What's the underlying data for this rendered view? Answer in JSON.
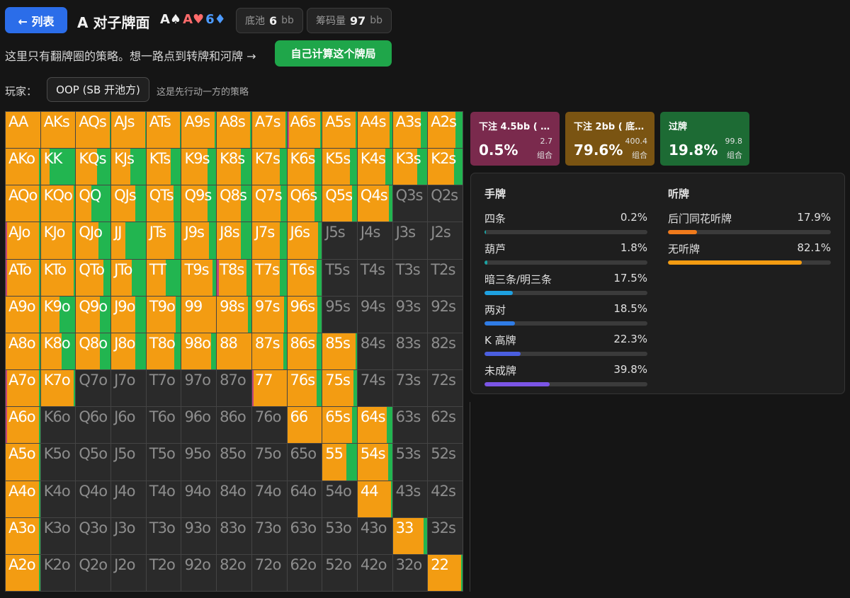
{
  "header": {
    "back_label": "← 列表",
    "title": "A 对子牌面",
    "board": [
      {
        "rank": "A",
        "suit": "♠",
        "suit_class": "suit-s"
      },
      {
        "rank": "A",
        "suit": "♥",
        "suit_class": "suit-h"
      },
      {
        "rank": "6",
        "suit": "♦",
        "suit_class": "suit-d"
      }
    ],
    "pot": {
      "label": "底池",
      "value": "6",
      "unit": "bb"
    },
    "stack": {
      "label": "筹码量",
      "value": "97",
      "unit": "bb"
    }
  },
  "info": {
    "text": "这里只有翻牌圈的策略。想一路点到转牌和河牌 →",
    "calc_button": "自己计算这个牌局"
  },
  "player": {
    "label": "玩家：",
    "selected": "OOP (SB 开池方)",
    "hint": "这是先行动一方的策略"
  },
  "actions": [
    {
      "name": "下注 4.5bb ( …",
      "pct": "0.5%",
      "combos": "2.7",
      "combos_label": "组合",
      "color": "#7a2a4d"
    },
    {
      "name": "下注 2bb ( 底…",
      "pct": "79.6%",
      "combos": "400.4",
      "combos_label": "组合",
      "color": "#7a5412"
    },
    {
      "name": "过牌",
      "pct": "19.8%",
      "combos": "99.8",
      "combos_label": "组合",
      "color": "#1d6b34"
    }
  ],
  "hands_panel": {
    "title": "手牌",
    "items": [
      {
        "label": "四条",
        "value": "0.2%",
        "pct": 0.2,
        "color": "#1aa3a3"
      },
      {
        "label": "葫芦",
        "value": "1.8%",
        "pct": 1.8,
        "color": "#1aa3a3"
      },
      {
        "label": "暗三条/明三条",
        "value": "17.5%",
        "pct": 17.5,
        "color": "#1ea0e0"
      },
      {
        "label": "两对",
        "value": "18.5%",
        "pct": 18.5,
        "color": "#2f7ce6"
      },
      {
        "label": "K 高牌",
        "value": "22.3%",
        "pct": 22.3,
        "color": "#4b5fe0"
      },
      {
        "label": "未成牌",
        "value": "39.8%",
        "pct": 39.8,
        "color": "#7b55e6"
      }
    ]
  },
  "draws_panel": {
    "title": "听牌",
    "items": [
      {
        "label": "后门同花听牌",
        "value": "17.9%",
        "pct": 17.9,
        "color": "#f07a1c"
      },
      {
        "label": "无听牌",
        "value": "82.1%",
        "pct": 82.1,
        "color": "#f39c12"
      }
    ]
  },
  "colors": {
    "bet": "#f39c12",
    "bet_large": "#c2457a",
    "check": "#22b550",
    "empty": "#2a2a2a"
  },
  "grid": {
    "rows": [
      [
        [
          "AA",
          [
            0,
            100,
            0
          ]
        ],
        [
          "AKs",
          [
            0,
            100,
            0
          ]
        ],
        [
          "AQs",
          [
            0,
            97,
            3
          ]
        ],
        [
          "AJs",
          [
            0,
            98,
            2
          ]
        ],
        [
          "ATs",
          [
            0,
            97,
            3
          ]
        ],
        [
          "A9s",
          [
            0,
            96,
            4
          ]
        ],
        [
          "A8s",
          [
            0,
            96,
            4
          ]
        ],
        [
          "A7s",
          [
            0,
            96,
            4
          ]
        ],
        [
          "A6s",
          [
            5,
            90,
            5
          ]
        ],
        [
          "A5s",
          [
            0,
            96,
            4
          ]
        ],
        [
          "A4s",
          [
            0,
            92,
            8
          ]
        ],
        [
          "A3s",
          [
            0,
            80,
            20
          ]
        ],
        [
          "A2s",
          [
            0,
            80,
            20
          ]
        ]
      ],
      [
        [
          "AKo",
          [
            0,
            96,
            4
          ]
        ],
        [
          "KK",
          [
            0,
            25,
            75
          ]
        ],
        [
          "KQs",
          [
            0,
            60,
            40
          ]
        ],
        [
          "KJs",
          [
            0,
            55,
            45
          ]
        ],
        [
          "KTs",
          [
            0,
            70,
            30
          ]
        ],
        [
          "K9s",
          [
            0,
            75,
            25
          ]
        ],
        [
          "K8s",
          [
            0,
            70,
            30
          ]
        ],
        [
          "K7s",
          [
            0,
            80,
            20
          ]
        ],
        [
          "K6s",
          [
            0,
            80,
            20
          ]
        ],
        [
          "K5s",
          [
            0,
            80,
            20
          ]
        ],
        [
          "K4s",
          [
            0,
            80,
            20
          ]
        ],
        [
          "K3s",
          [
            0,
            70,
            30
          ]
        ],
        [
          "K2s",
          [
            0,
            75,
            25
          ]
        ]
      ],
      [
        [
          "AQo",
          [
            0,
            96,
            4
          ]
        ],
        [
          "KQo",
          [
            0,
            96,
            4
          ]
        ],
        [
          "QQ",
          [
            0,
            45,
            55
          ]
        ],
        [
          "QJs",
          [
            0,
            70,
            30
          ]
        ],
        [
          "QTs",
          [
            0,
            78,
            22
          ]
        ],
        [
          "Q9s",
          [
            0,
            75,
            25
          ]
        ],
        [
          "Q8s",
          [
            0,
            70,
            30
          ]
        ],
        [
          "Q7s",
          [
            0,
            82,
            18
          ]
        ],
        [
          "Q6s",
          [
            0,
            80,
            20
          ]
        ],
        [
          "Q5s",
          [
            0,
            85,
            15
          ]
        ],
        [
          "Q4s",
          [
            0,
            90,
            10
          ]
        ],
        [
          "Q3s",
          null
        ],
        [
          "Q2s",
          null
        ]
      ],
      [
        [
          "AJo",
          [
            5,
            91,
            4
          ]
        ],
        [
          "KJo",
          [
            0,
            90,
            10
          ]
        ],
        [
          "QJo",
          [
            0,
            65,
            35
          ]
        ],
        [
          "JJ",
          [
            0,
            40,
            60
          ]
        ],
        [
          "JTs",
          [
            0,
            80,
            20
          ]
        ],
        [
          "J9s",
          [
            0,
            80,
            20
          ]
        ],
        [
          "J8s",
          [
            0,
            70,
            30
          ]
        ],
        [
          "J7s",
          [
            0,
            80,
            20
          ]
        ],
        [
          "J6s",
          [
            0,
            90,
            10
          ]
        ],
        [
          "J5s",
          null
        ],
        [
          "J4s",
          null
        ],
        [
          "J3s",
          null
        ],
        [
          "J2s",
          null
        ]
      ],
      [
        [
          "ATo",
          [
            5,
            91,
            4
          ]
        ],
        [
          "KTo",
          [
            0,
            96,
            4
          ]
        ],
        [
          "QTo",
          [
            0,
            80,
            20
          ]
        ],
        [
          "JTo",
          [
            0,
            60,
            40
          ]
        ],
        [
          "TT",
          [
            0,
            55,
            45
          ]
        ],
        [
          "T9s",
          [
            0,
            90,
            10
          ]
        ],
        [
          "T8s",
          [
            5,
            80,
            15
          ]
        ],
        [
          "T7s",
          [
            0,
            80,
            20
          ]
        ],
        [
          "T6s",
          [
            0,
            85,
            15
          ]
        ],
        [
          "T5s",
          null
        ],
        [
          "T4s",
          null
        ],
        [
          "T3s",
          null
        ],
        [
          "T2s",
          null
        ]
      ],
      [
        [
          "A9o",
          [
            0,
            96,
            4
          ]
        ],
        [
          "K9o",
          [
            0,
            55,
            45
          ]
        ],
        [
          "Q9o",
          [
            0,
            70,
            30
          ]
        ],
        [
          "J9o",
          [
            0,
            70,
            30
          ]
        ],
        [
          "T9o",
          [
            0,
            85,
            15
          ]
        ],
        [
          "99",
          [
            0,
            100,
            0
          ]
        ],
        [
          "98s",
          [
            0,
            90,
            10
          ]
        ],
        [
          "97s",
          [
            0,
            92,
            8
          ]
        ],
        [
          "96s",
          [
            0,
            88,
            12
          ]
        ],
        [
          "95s",
          null
        ],
        [
          "94s",
          null
        ],
        [
          "93s",
          null
        ],
        [
          "92s",
          null
        ]
      ],
      [
        [
          "A8o",
          [
            0,
            96,
            4
          ]
        ],
        [
          "K8o",
          [
            0,
            60,
            40
          ]
        ],
        [
          "Q8o",
          [
            0,
            70,
            30
          ]
        ],
        [
          "J8o",
          [
            0,
            70,
            30
          ]
        ],
        [
          "T8o",
          [
            0,
            80,
            20
          ]
        ],
        [
          "98o",
          [
            0,
            85,
            15
          ]
        ],
        [
          "88",
          [
            0,
            100,
            0
          ]
        ],
        [
          "87s",
          [
            0,
            90,
            10
          ]
        ],
        [
          "86s",
          [
            0,
            85,
            15
          ]
        ],
        [
          "85s",
          [
            0,
            96,
            4
          ]
        ],
        [
          "84s",
          null
        ],
        [
          "83s",
          null
        ],
        [
          "82s",
          null
        ]
      ],
      [
        [
          "A7o",
          [
            5,
            91,
            4
          ]
        ],
        [
          "K7o",
          [
            0,
            96,
            4
          ]
        ],
        [
          "Q7o",
          null
        ],
        [
          "J7o",
          null
        ],
        [
          "T7o",
          null
        ],
        [
          "97o",
          null
        ],
        [
          "87o",
          null
        ],
        [
          "77",
          [
            5,
            95,
            0
          ]
        ],
        [
          "76s",
          [
            0,
            85,
            15
          ]
        ],
        [
          "75s",
          [
            0,
            90,
            10
          ]
        ],
        [
          "74s",
          null
        ],
        [
          "73s",
          null
        ],
        [
          "72s",
          null
        ]
      ],
      [
        [
          "A6o",
          [
            5,
            91,
            4
          ]
        ],
        [
          "K6o",
          null
        ],
        [
          "Q6o",
          null
        ],
        [
          "J6o",
          null
        ],
        [
          "T6o",
          null
        ],
        [
          "96o",
          null
        ],
        [
          "86o",
          null
        ],
        [
          "76o",
          null
        ],
        [
          "66",
          [
            0,
            100,
            0
          ]
        ],
        [
          "65s",
          [
            0,
            85,
            15
          ]
        ],
        [
          "64s",
          [
            0,
            85,
            15
          ]
        ],
        [
          "63s",
          null
        ],
        [
          "62s",
          null
        ]
      ],
      [
        [
          "A5o",
          [
            0,
            96,
            4
          ]
        ],
        [
          "K5o",
          null
        ],
        [
          "Q5o",
          null
        ],
        [
          "J5o",
          null
        ],
        [
          "T5o",
          null
        ],
        [
          "95o",
          null
        ],
        [
          "85o",
          null
        ],
        [
          "75o",
          null
        ],
        [
          "65o",
          null
        ],
        [
          "55",
          [
            0,
            70,
            30
          ]
        ],
        [
          "54s",
          [
            0,
            88,
            12
          ]
        ],
        [
          "53s",
          null
        ],
        [
          "52s",
          null
        ]
      ],
      [
        [
          "A4o",
          [
            0,
            96,
            4
          ]
        ],
        [
          "K4o",
          null
        ],
        [
          "Q4o",
          null
        ],
        [
          "J4o",
          null
        ],
        [
          "T4o",
          null
        ],
        [
          "94o",
          null
        ],
        [
          "84o",
          null
        ],
        [
          "74o",
          null
        ],
        [
          "64o",
          null
        ],
        [
          "54o",
          null
        ],
        [
          "44",
          [
            0,
            96,
            4
          ]
        ],
        [
          "43s",
          null
        ],
        [
          "42s",
          null
        ]
      ],
      [
        [
          "A3o",
          [
            0,
            96,
            4
          ]
        ],
        [
          "K3o",
          null
        ],
        [
          "Q3o",
          null
        ],
        [
          "J3o",
          null
        ],
        [
          "T3o",
          null
        ],
        [
          "93o",
          null
        ],
        [
          "83o",
          null
        ],
        [
          "73o",
          null
        ],
        [
          "63o",
          null
        ],
        [
          "53o",
          null
        ],
        [
          "43o",
          null
        ],
        [
          "33",
          [
            0,
            90,
            10
          ]
        ],
        [
          "32s",
          null
        ]
      ],
      [
        [
          "A2o",
          [
            0,
            96,
            4
          ]
        ],
        [
          "K2o",
          null
        ],
        [
          "Q2o",
          null
        ],
        [
          "J2o",
          null
        ],
        [
          "T2o",
          null
        ],
        [
          "92o",
          null
        ],
        [
          "82o",
          null
        ],
        [
          "72o",
          null
        ],
        [
          "62o",
          null
        ],
        [
          "52o",
          null
        ],
        [
          "42o",
          null
        ],
        [
          "32o",
          null
        ],
        [
          "22",
          [
            0,
            95,
            5
          ]
        ]
      ]
    ]
  }
}
